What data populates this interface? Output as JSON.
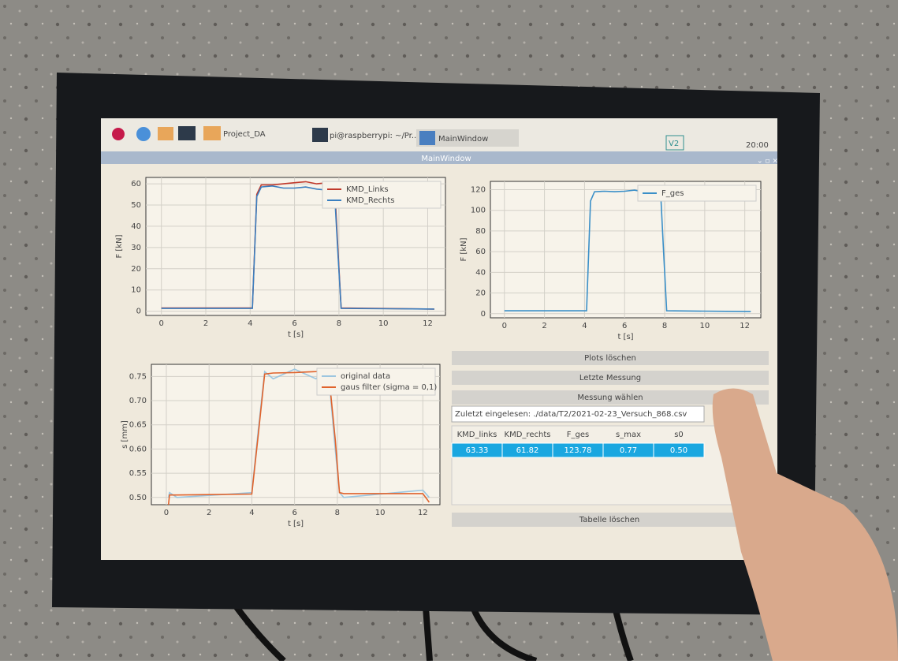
{
  "taskbar": {
    "items": [
      "Project_DA",
      "pi@raspberrypi: ~/Pr...",
      "MainWindow"
    ],
    "tray": "V2",
    "clock": "20:00"
  },
  "window": {
    "title": "MainWindow"
  },
  "charts": [
    {
      "type": "line",
      "xlabel": "t [s]",
      "ylabel": "F [kN]",
      "xlim": [
        -0.7,
        12.8
      ],
      "xticks": [
        0,
        2,
        4,
        6,
        8,
        10,
        12
      ],
      "ylim": [
        -2,
        63
      ],
      "yticks": [
        0,
        10,
        20,
        30,
        40,
        50,
        60
      ],
      "grid": true,
      "legend": "upper right",
      "x": [
        0,
        4.1,
        4.3,
        4.5,
        5,
        5.5,
        6,
        6.5,
        7,
        7.5,
        7.8,
        7.95,
        8.1,
        12.3
      ],
      "series": [
        {
          "name": "KMD_Links",
          "color": "#c0392b",
          "values": [
            1.5,
            1.5,
            55,
            59.5,
            59.5,
            60,
            60.5,
            61,
            60,
            60.5,
            60,
            30,
            1.5,
            1
          ]
        },
        {
          "name": "KMD_Rechts",
          "color": "#3a7fc0",
          "values": [
            1.3,
            1.3,
            54,
            58.5,
            59,
            58,
            58,
            58.5,
            57.5,
            57,
            56,
            28,
            1.3,
            1
          ]
        }
      ]
    },
    {
      "type": "line",
      "xlabel": "t [s]",
      "ylabel": "F [kN]",
      "xlim": [
        -0.7,
        12.8
      ],
      "xticks": [
        0,
        2,
        4,
        6,
        8,
        10,
        12
      ],
      "ylim": [
        -4,
        128
      ],
      "yticks": [
        0,
        20,
        40,
        60,
        80,
        100,
        120
      ],
      "grid": true,
      "legend": "upper right",
      "x": [
        0,
        4.1,
        4.3,
        4.5,
        5,
        5.5,
        6,
        6.5,
        7,
        7.5,
        7.8,
        7.95,
        8.1,
        12.3
      ],
      "series": [
        {
          "name": "F_ges",
          "color": "#3a8fc8",
          "values": [
            2.8,
            2.8,
            109,
            118,
            118.5,
            118,
            118.5,
            119.5,
            117.5,
            117.5,
            116,
            58,
            2.8,
            2
          ]
        }
      ]
    },
    {
      "type": "line",
      "xlabel": "t [s]",
      "ylabel": "s [mm]",
      "xlim": [
        -0.7,
        12.8
      ],
      "xticks": [
        0,
        2,
        4,
        6,
        8,
        10,
        12
      ],
      "ylim": [
        0.485,
        0.775
      ],
      "yticks": [
        {
          "value": 0.5,
          "label": "0.50"
        },
        0.55,
        {
          "value": 0.6,
          "label": "0.60"
        },
        0.65,
        {
          "value": 0.7,
          "label": "0.70"
        },
        0.75
      ],
      "grid": true,
      "legend": "upper right",
      "x": [
        0.1,
        0.15,
        0.5,
        4,
        4.3,
        4.6,
        5,
        6,
        7,
        7.4,
        7.6,
        7.9,
        8.1,
        8.3,
        12,
        12.3
      ],
      "series": [
        {
          "name": "original data",
          "color": "#9cc6e0",
          "values": [
            0.5,
            0.51,
            0.5,
            0.51,
            0.64,
            0.76,
            0.745,
            0.765,
            0.745,
            0.765,
            0.75,
            0.6,
            0.51,
            0.5,
            0.515,
            0.5
          ]
        },
        {
          "name": "gaus filter (sigma = 0,1)",
          "color": "#e0632c",
          "values": [
            0.485,
            0.505,
            0.505,
            0.507,
            0.63,
            0.755,
            0.757,
            0.758,
            0.76,
            0.762,
            0.755,
            0.62,
            0.51,
            0.508,
            0.508,
            0.49
          ]
        }
      ]
    }
  ],
  "buttons": [
    "Plots löschen",
    "Letzte Messung",
    "Messung wählen"
  ],
  "status": "Zuletzt eingelesen: ./data/T2/2021-02-23_Versuch_868.csv",
  "table": {
    "columns": [
      "KMD_links",
      "KMD_rechts",
      "F_ges",
      "s_max",
      "s0"
    ],
    "rows": [
      [
        "63.33",
        "61.82",
        "123.78",
        "0.77",
        "0.50"
      ]
    ]
  },
  "clear_button": "Tabelle löschen"
}
